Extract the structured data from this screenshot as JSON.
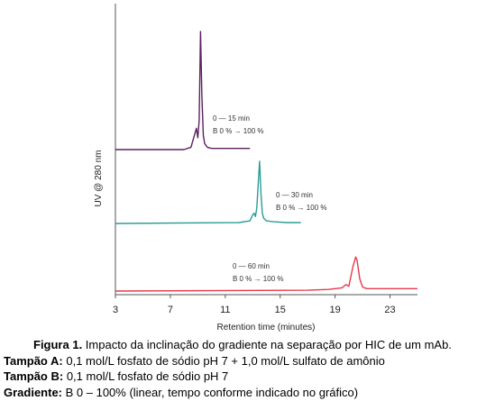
{
  "chart_data": {
    "type": "line",
    "xlabel": "Retention time (minutes)",
    "ylabel": "UV @ 280 nm",
    "xlim": [
      3,
      25
    ],
    "xticks": [
      3,
      7,
      11,
      15,
      19,
      23
    ],
    "grid": false,
    "series": [
      {
        "color": "#5b2160",
        "annotation_lines": [
          "0 — 15 min",
          "B 0 % → 100 %"
        ],
        "x": [
          3.0,
          8.0,
          8.5,
          8.8,
          8.9,
          9.0,
          9.1,
          9.2,
          9.3,
          9.4,
          9.5,
          9.7,
          10.0,
          11.0,
          12.8
        ],
        "y": [
          0.0,
          0.0,
          0.02,
          0.14,
          0.18,
          0.1,
          0.25,
          1.0,
          0.45,
          0.12,
          0.05,
          0.02,
          0.01,
          0.01,
          0.01
        ]
      },
      {
        "color": "#2a9d94",
        "annotation_lines": [
          "0 — 30 min",
          "B 0 % → 100 %"
        ],
        "x": [
          3.0,
          12.0,
          12.8,
          13.0,
          13.1,
          13.2,
          13.3,
          13.5,
          13.6,
          13.7,
          13.8,
          14.0,
          14.5,
          15.5,
          16.5
        ],
        "y": [
          0.0,
          0.01,
          0.03,
          0.1,
          0.12,
          0.08,
          0.18,
          0.72,
          0.35,
          0.12,
          0.06,
          0.03,
          0.02,
          0.01,
          0.01
        ]
      },
      {
        "color": "#e8394a",
        "annotation_lines": [
          "0 — 60 min",
          "B 0 % → 100 %"
        ],
        "x": [
          3.0,
          17.0,
          18.5,
          19.5,
          19.8,
          20.0,
          20.3,
          20.5,
          20.6,
          20.8,
          21.0,
          21.3,
          22.0,
          25.0
        ],
        "y": [
          0.0,
          0.01,
          0.02,
          0.04,
          0.08,
          0.06,
          0.3,
          0.42,
          0.38,
          0.15,
          0.05,
          0.03,
          0.03,
          0.03
        ]
      }
    ]
  },
  "caption": {
    "figure_label": "Figura 1.",
    "figure_text": " Impacto da inclinação do gradiente na separação por HIC de um mAb.",
    "lines": [
      {
        "label": "Tampão A:",
        "text": " 0,1 mol/L fosfato de sódio pH 7 + 1,0 mol/L sulfato de amônio"
      },
      {
        "label": "Tampão B:",
        "text": " 0,1 mol/L fosfato de sódio pH 7"
      },
      {
        "label": "Gradiente:",
        "text": " B 0 – 100% (linear, tempo conforme indicado no gráfico)"
      }
    ]
  }
}
